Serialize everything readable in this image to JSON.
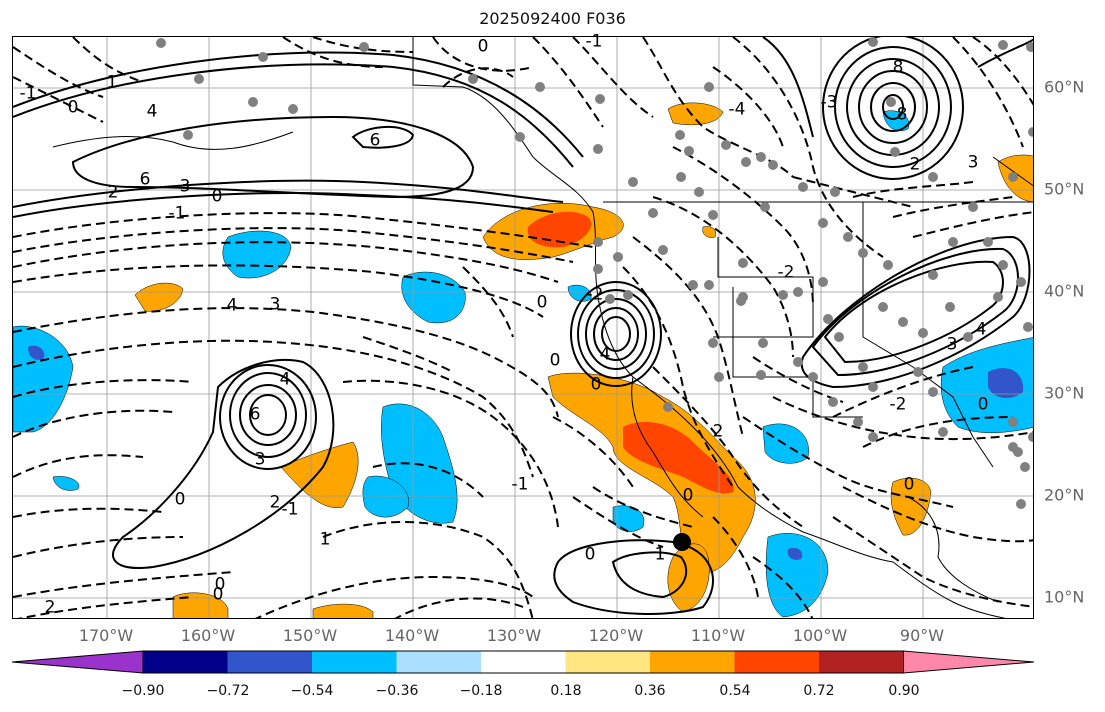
{
  "title": "2025092400 F036",
  "lon_ticks": [
    {
      "label": "170°W"
    },
    {
      "label": "160°W"
    },
    {
      "label": "150°W"
    },
    {
      "label": "140°W"
    },
    {
      "label": "130°W"
    },
    {
      "label": "120°W"
    },
    {
      "label": "110°W"
    },
    {
      "label": "100°W"
    },
    {
      "label": "90°W"
    }
  ],
  "lat_ticks": [
    {
      "label": "60°N"
    },
    {
      "label": "50°N"
    },
    {
      "label": "40°N"
    },
    {
      "label": "30°N"
    },
    {
      "label": "20°N"
    },
    {
      "label": "10°N"
    }
  ],
  "colorbar": {
    "colors": [
      "#9933cc",
      "#000088",
      "#3355cc",
      "#00bfff",
      "#aadfff",
      "#ffffff",
      "#ffe680",
      "#ffa500",
      "#ff4500",
      "#b22222",
      "#ff88aa"
    ],
    "ticks": [
      "−0.90",
      "−0.72",
      "−0.54",
      "−0.36",
      "−0.18",
      "0.18",
      "0.36",
      "0.54",
      "0.72",
      "0.90"
    ]
  },
  "contour_labels": [
    {
      "text": "6"
    },
    {
      "text": "6"
    },
    {
      "text": "4"
    },
    {
      "text": "3"
    },
    {
      "text": "2"
    },
    {
      "text": "0"
    },
    {
      "text": "-1"
    },
    {
      "text": "4"
    },
    {
      "text": "3"
    },
    {
      "text": "4"
    },
    {
      "text": "6"
    },
    {
      "text": "3"
    },
    {
      "text": "2"
    },
    {
      "text": "0"
    },
    {
      "text": "-1"
    },
    {
      "text": "1"
    },
    {
      "text": "0"
    },
    {
      "text": "2"
    },
    {
      "text": "4"
    },
    {
      "text": "0"
    },
    {
      "text": "1"
    },
    {
      "text": "-1"
    },
    {
      "text": "0"
    },
    {
      "text": "8"
    },
    {
      "text": "8"
    },
    {
      "text": "-3"
    },
    {
      "text": "-4"
    },
    {
      "text": "2"
    },
    {
      "text": "3"
    },
    {
      "text": "-2"
    },
    {
      "text": "0"
    },
    {
      "text": "-2"
    },
    {
      "text": "0"
    },
    {
      "text": "0"
    },
    {
      "text": "3"
    },
    {
      "text": "4"
    },
    {
      "text": "-2"
    },
    {
      "text": "0"
    },
    {
      "text": "0"
    },
    {
      "text": "0"
    },
    {
      "text": "-1"
    },
    {
      "text": "2"
    },
    {
      "text": "0"
    },
    {
      "text": "-1"
    },
    {
      "text": "0"
    },
    {
      "text": "1"
    }
  ]
}
